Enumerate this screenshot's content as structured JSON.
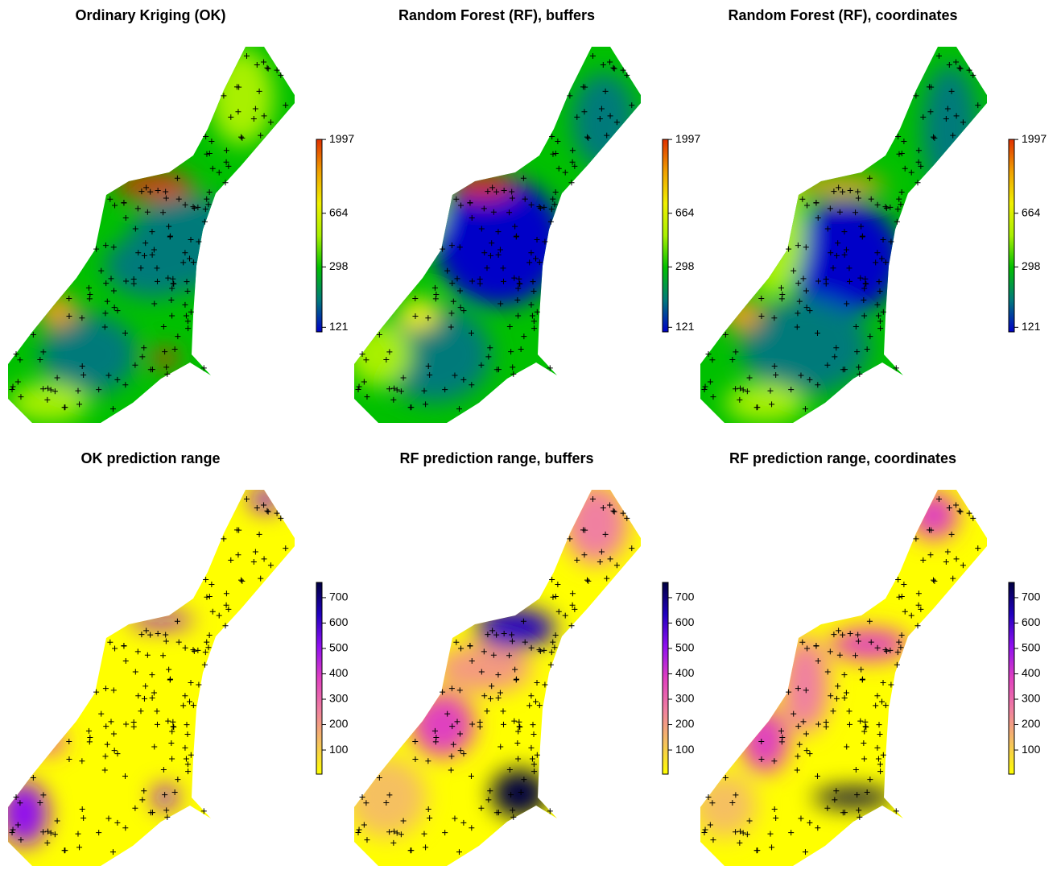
{
  "panels": [
    {
      "title": "Ordinary Kriging (OK)",
      "colorbar": {
        "lim": [
          113,
          2000
        ],
        "log": true,
        "ticks": [
          121,
          298,
          664,
          1997
        ],
        "palette": [
          "#0000c8",
          "#007a7a",
          "#00c000",
          "#a8f000",
          "#f0f000",
          "#f0a000",
          "#e03000"
        ]
      }
    },
    {
      "title": "Random Forest (RF), buffers",
      "colorbar": {
        "lim": [
          113,
          2000
        ],
        "log": true,
        "ticks": [
          121,
          298,
          664,
          1997
        ],
        "palette": [
          "#0000c8",
          "#007a7a",
          "#00c000",
          "#a8f000",
          "#f0f000",
          "#f0a000",
          "#e03000"
        ]
      }
    },
    {
      "title": "Random Forest (RF), coordinates",
      "colorbar": {
        "lim": [
          113,
          2000
        ],
        "log": true,
        "ticks": [
          121,
          298,
          664,
          1997
        ],
        "palette": [
          "#0000c8",
          "#007a7a",
          "#00c000",
          "#a8f000",
          "#f0f000",
          "#f0a000",
          "#e03000"
        ]
      }
    },
    {
      "title": "OK prediction range",
      "colorbar": {
        "lim": [
          5,
          760
        ],
        "log": false,
        "ticks": [
          100,
          200,
          300,
          400,
          500,
          600,
          700
        ],
        "palette": [
          "#ffff00",
          "#f5c060",
          "#f080a0",
          "#e040c0",
          "#9010f0",
          "#2000c0",
          "#000040"
        ]
      }
    },
    {
      "title": "RF prediction range, buffers",
      "colorbar": {
        "lim": [
          5,
          760
        ],
        "log": false,
        "ticks": [
          100,
          200,
          300,
          400,
          500,
          600,
          700
        ],
        "palette": [
          "#ffff00",
          "#f5c060",
          "#f080a0",
          "#e040c0",
          "#9010f0",
          "#2000c0",
          "#000040"
        ]
      }
    },
    {
      "title": "RF prediction range, coordinates",
      "colorbar": {
        "lim": [
          5,
          760
        ],
        "log": false,
        "ticks": [
          100,
          200,
          300,
          400,
          500,
          600,
          700
        ],
        "palette": [
          "#ffff00",
          "#f5c060",
          "#f080a0",
          "#e040c0",
          "#9010f0",
          "#2000c0",
          "#000040"
        ]
      }
    }
  ]
}
